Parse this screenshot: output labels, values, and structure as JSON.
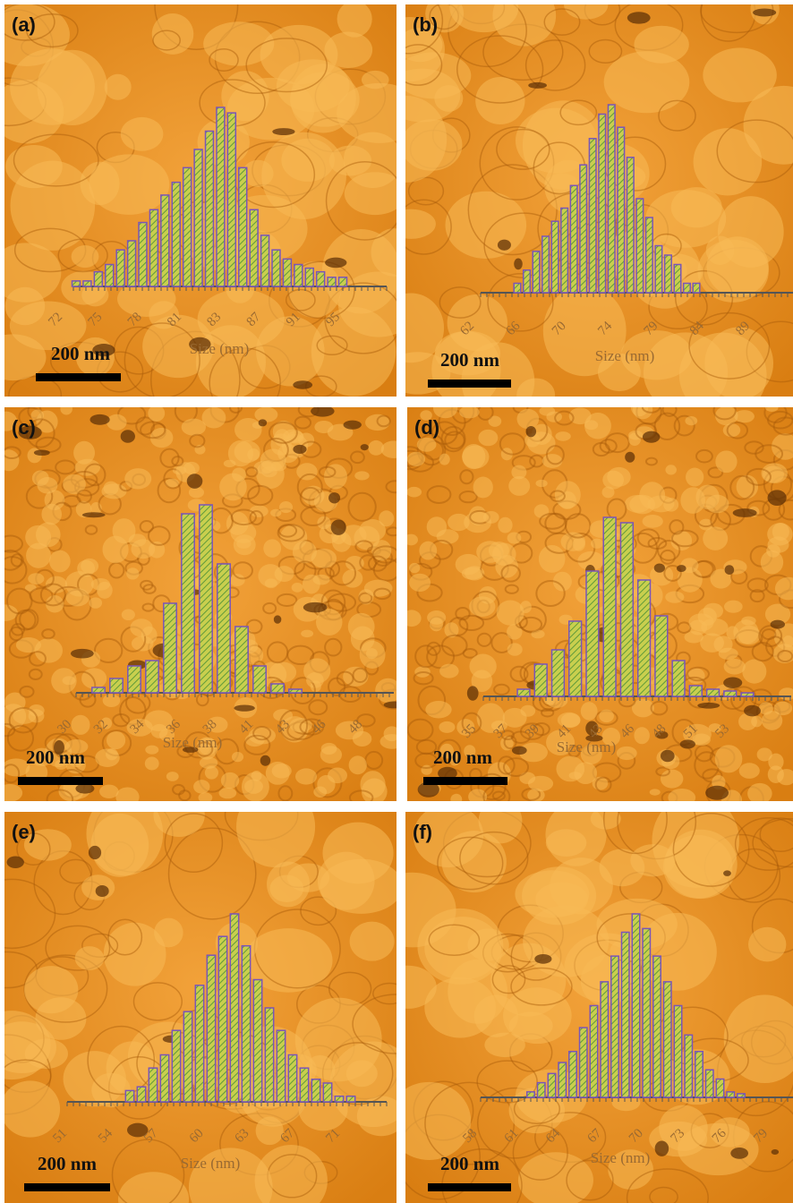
{
  "chart_data": [
    {
      "type": "bar",
      "panel_label": "(a)",
      "scale_bar": "200 nm",
      "x_label": "Size (nm)",
      "values": [
        3,
        3,
        8,
        12,
        20,
        25,
        35,
        42,
        50,
        57,
        65,
        75,
        85,
        98,
        95,
        65,
        42,
        28,
        20,
        15,
        12,
        10,
        8,
        5,
        5
      ],
      "x_tick_labels": [
        72,
        75,
        78,
        81,
        83,
        87,
        91,
        95
      ]
    },
    {
      "type": "bar",
      "panel_label": "(b)",
      "scale_bar": "200 nm",
      "x_label": "Size (nm)",
      "values": [
        5,
        12,
        22,
        30,
        38,
        45,
        57,
        68,
        82,
        95,
        100,
        88,
        72,
        50,
        40,
        25,
        20,
        15,
        5,
        5
      ],
      "x_tick_labels": [
        62,
        66,
        70,
        74,
        79,
        84,
        89
      ]
    },
    {
      "type": "bar",
      "panel_label": "(c)",
      "scale_bar": "200 nm",
      "x_label": "Size (nm)",
      "values": [
        3,
        8,
        15,
        18,
        50,
        100,
        105,
        72,
        37,
        15,
        5,
        2
      ],
      "x_tick_labels": [
        30,
        32,
        34,
        36,
        38,
        41,
        43,
        46,
        48
      ]
    },
    {
      "type": "bar",
      "panel_label": "(d)",
      "scale_bar": "200 nm",
      "x_label": "Size (nm)",
      "values": [
        4,
        18,
        26,
        42,
        70,
        100,
        97,
        65,
        45,
        20,
        6,
        4,
        3,
        2
      ],
      "x_tick_labels": [
        35,
        37,
        39,
        41,
        43,
        46,
        48,
        51,
        53
      ]
    },
    {
      "type": "bar",
      "panel_label": "(e)",
      "scale_bar": "200 nm",
      "x_label": "Size (nm)",
      "values": [
        6,
        8,
        18,
        25,
        38,
        48,
        62,
        78,
        88,
        100,
        83,
        65,
        50,
        38,
        25,
        18,
        12,
        10,
        3,
        3
      ],
      "x_tick_labels": [
        51,
        54,
        57,
        60,
        63,
        67,
        71
      ]
    },
    {
      "type": "bar",
      "panel_label": "(f)",
      "scale_bar": "200 nm",
      "x_label": "Size (nm)",
      "values": [
        3,
        8,
        13,
        19,
        25,
        38,
        50,
        63,
        77,
        90,
        100,
        92,
        77,
        63,
        50,
        34,
        25,
        15,
        10,
        3,
        2
      ],
      "x_tick_labels": [
        58,
        61,
        64,
        67,
        70,
        73,
        76,
        79
      ]
    }
  ]
}
